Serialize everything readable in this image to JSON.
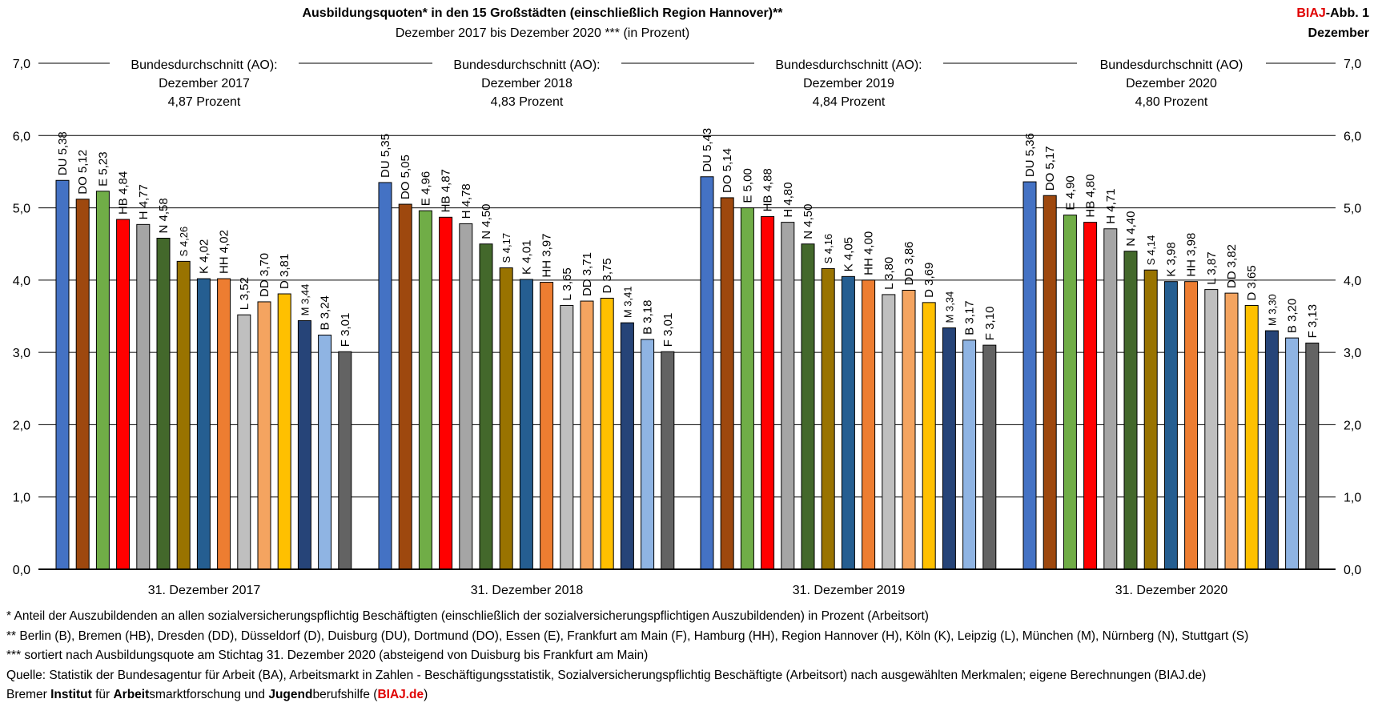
{
  "header": {
    "title": "Ausbildungsquoten* in den 15 Großstädten (einschließlich Region Hannover)**",
    "subtitle": "Dezember 2017 bis Dezember 2020 *** (in Prozent)",
    "brand_red": "BIAJ",
    "brand_rest": "-Abb. 1",
    "brand_line2": "Dezember"
  },
  "chart_data": {
    "type": "bar",
    "title": "Ausbildungsquoten* in den 15 Großstädten (einschließlich Region Hannover)**",
    "ylim": [
      0,
      7
    ],
    "yticks": [
      "0,0",
      "1,0",
      "2,0",
      "3,0",
      "4,0",
      "5,0",
      "6,0",
      "7,0"
    ],
    "grid": true,
    "cities": [
      "DU",
      "DO",
      "E",
      "HB",
      "H",
      "N",
      "S",
      "K",
      "HH",
      "L",
      "DD",
      "D",
      "M",
      "B",
      "F"
    ],
    "city_colors": [
      "#4472c4",
      "#9e480e",
      "#70ad47",
      "#ff0000",
      "#a5a5a5",
      "#43682b",
      "#997300",
      "#255e91",
      "#ed7d31",
      "#bfbfbf",
      "#f4a460",
      "#ffc000",
      "#264478",
      "#8fb4e3",
      "#636363"
    ],
    "groups": [
      {
        "label": "31. Dezember 2017",
        "average_lines": [
          "Bundesdurchschnitt (AO):",
          "Dezember 2017",
          "4,87   Prozent"
        ],
        "average": 4.87,
        "values": [
          5.38,
          5.12,
          5.23,
          4.84,
          4.77,
          4.58,
          4.26,
          4.02,
          4.02,
          3.52,
          3.7,
          3.81,
          3.44,
          3.24,
          3.01
        ],
        "value_labels": [
          "5,38",
          "5,12",
          "5,23",
          "4,84",
          "4,77",
          "4,58",
          "4,26",
          "4,02",
          "4,02",
          "3,52",
          "3,70",
          "3,81",
          "3,44",
          "3,24",
          "3,01"
        ]
      },
      {
        "label": "31. Dezember 2018",
        "average_lines": [
          "Bundesdurchschnitt (AO):",
          "Dezember 2018",
          "4,83   Prozent"
        ],
        "average": 4.83,
        "values": [
          5.35,
          5.05,
          4.96,
          4.87,
          4.78,
          4.5,
          4.17,
          4.01,
          3.97,
          3.65,
          3.71,
          3.75,
          3.41,
          3.18,
          3.01
        ],
        "value_labels": [
          "5,35",
          "5,05",
          "4,96",
          "4,87",
          "4,78",
          "4,50",
          "4,17",
          "4,01",
          "3,97",
          "3,65",
          "3,71",
          "3,75",
          "3,41",
          "3,18",
          "3,01"
        ]
      },
      {
        "label": "31. Dezember 2019",
        "average_lines": [
          "Bundesdurchschnitt (AO):",
          "Dezember 2019",
          "4,84   Prozent"
        ],
        "average": 4.84,
        "values": [
          5.43,
          5.14,
          5.0,
          4.88,
          4.8,
          4.5,
          4.16,
          4.05,
          4.0,
          3.8,
          3.86,
          3.69,
          3.34,
          3.17,
          3.1
        ],
        "value_labels": [
          "5,43",
          "5,14",
          "5,00",
          "4,88",
          "4,80",
          "4,50",
          "4,16",
          "4,05",
          "4,00",
          "3,80",
          "3,86",
          "3,69",
          "3,34",
          "3,17",
          "3,10"
        ]
      },
      {
        "label": "31. Dezember 2020",
        "average_lines": [
          "Bundesdurchschnitt (AO)",
          "Dezember 2020",
          "4,80   Prozent"
        ],
        "average": 4.8,
        "values": [
          5.36,
          5.17,
          4.9,
          4.8,
          4.71,
          4.4,
          4.14,
          3.98,
          3.98,
          3.87,
          3.82,
          3.65,
          3.3,
          3.2,
          3.13
        ],
        "value_labels": [
          "5,36",
          "5,17",
          "4,90",
          "4,80",
          "4,71",
          "4,40",
          "4,14",
          "3,98",
          "3,98",
          "3,87",
          "3,82",
          "3,65",
          "3,30",
          "3,20",
          "3,13"
        ]
      }
    ]
  },
  "notes": {
    "n1": "*      Anteil der Auszubildenden an allen sozialversicherungspflichtig Beschäftigten (einschließlich der sozialversicherungspflichtigen Auszubildenden) in Prozent (Arbeitsort)",
    "n2": "**    Berlin (B), Bremen (HB), Dresden (DD), Düsseldorf (D), Duisburg (DU), Dortmund (DO), Essen (E), Frankfurt am Main (F), Hamburg (HH), Region Hannover (H), Köln (K), Leipzig (L), München (M), Nürnberg (N), Stuttgart (S)",
    "n3": "*** sortiert nach Ausbildungsquote am Stichtag 31. Dezember 2020 (absteigend von Duisburg bis Frankfurt am Main)",
    "source": "Quelle: Statistik der Bundesagentur für Arbeit (BA), Arbeitsmarkt in Zahlen - Beschäftigungsstatistik, Sozialversicherungspflichtig Beschäftigte (Arbeitsort) nach ausgewählten Merkmalen; eigene Berechnungen (BIAJ.de)",
    "footer_parts": [
      "Bremer ",
      "Institut",
      " für ",
      "Arbeit",
      "smarktforschung und ",
      "Jugend",
      "berufshilfe (",
      "BIAJ.de",
      ")"
    ]
  }
}
